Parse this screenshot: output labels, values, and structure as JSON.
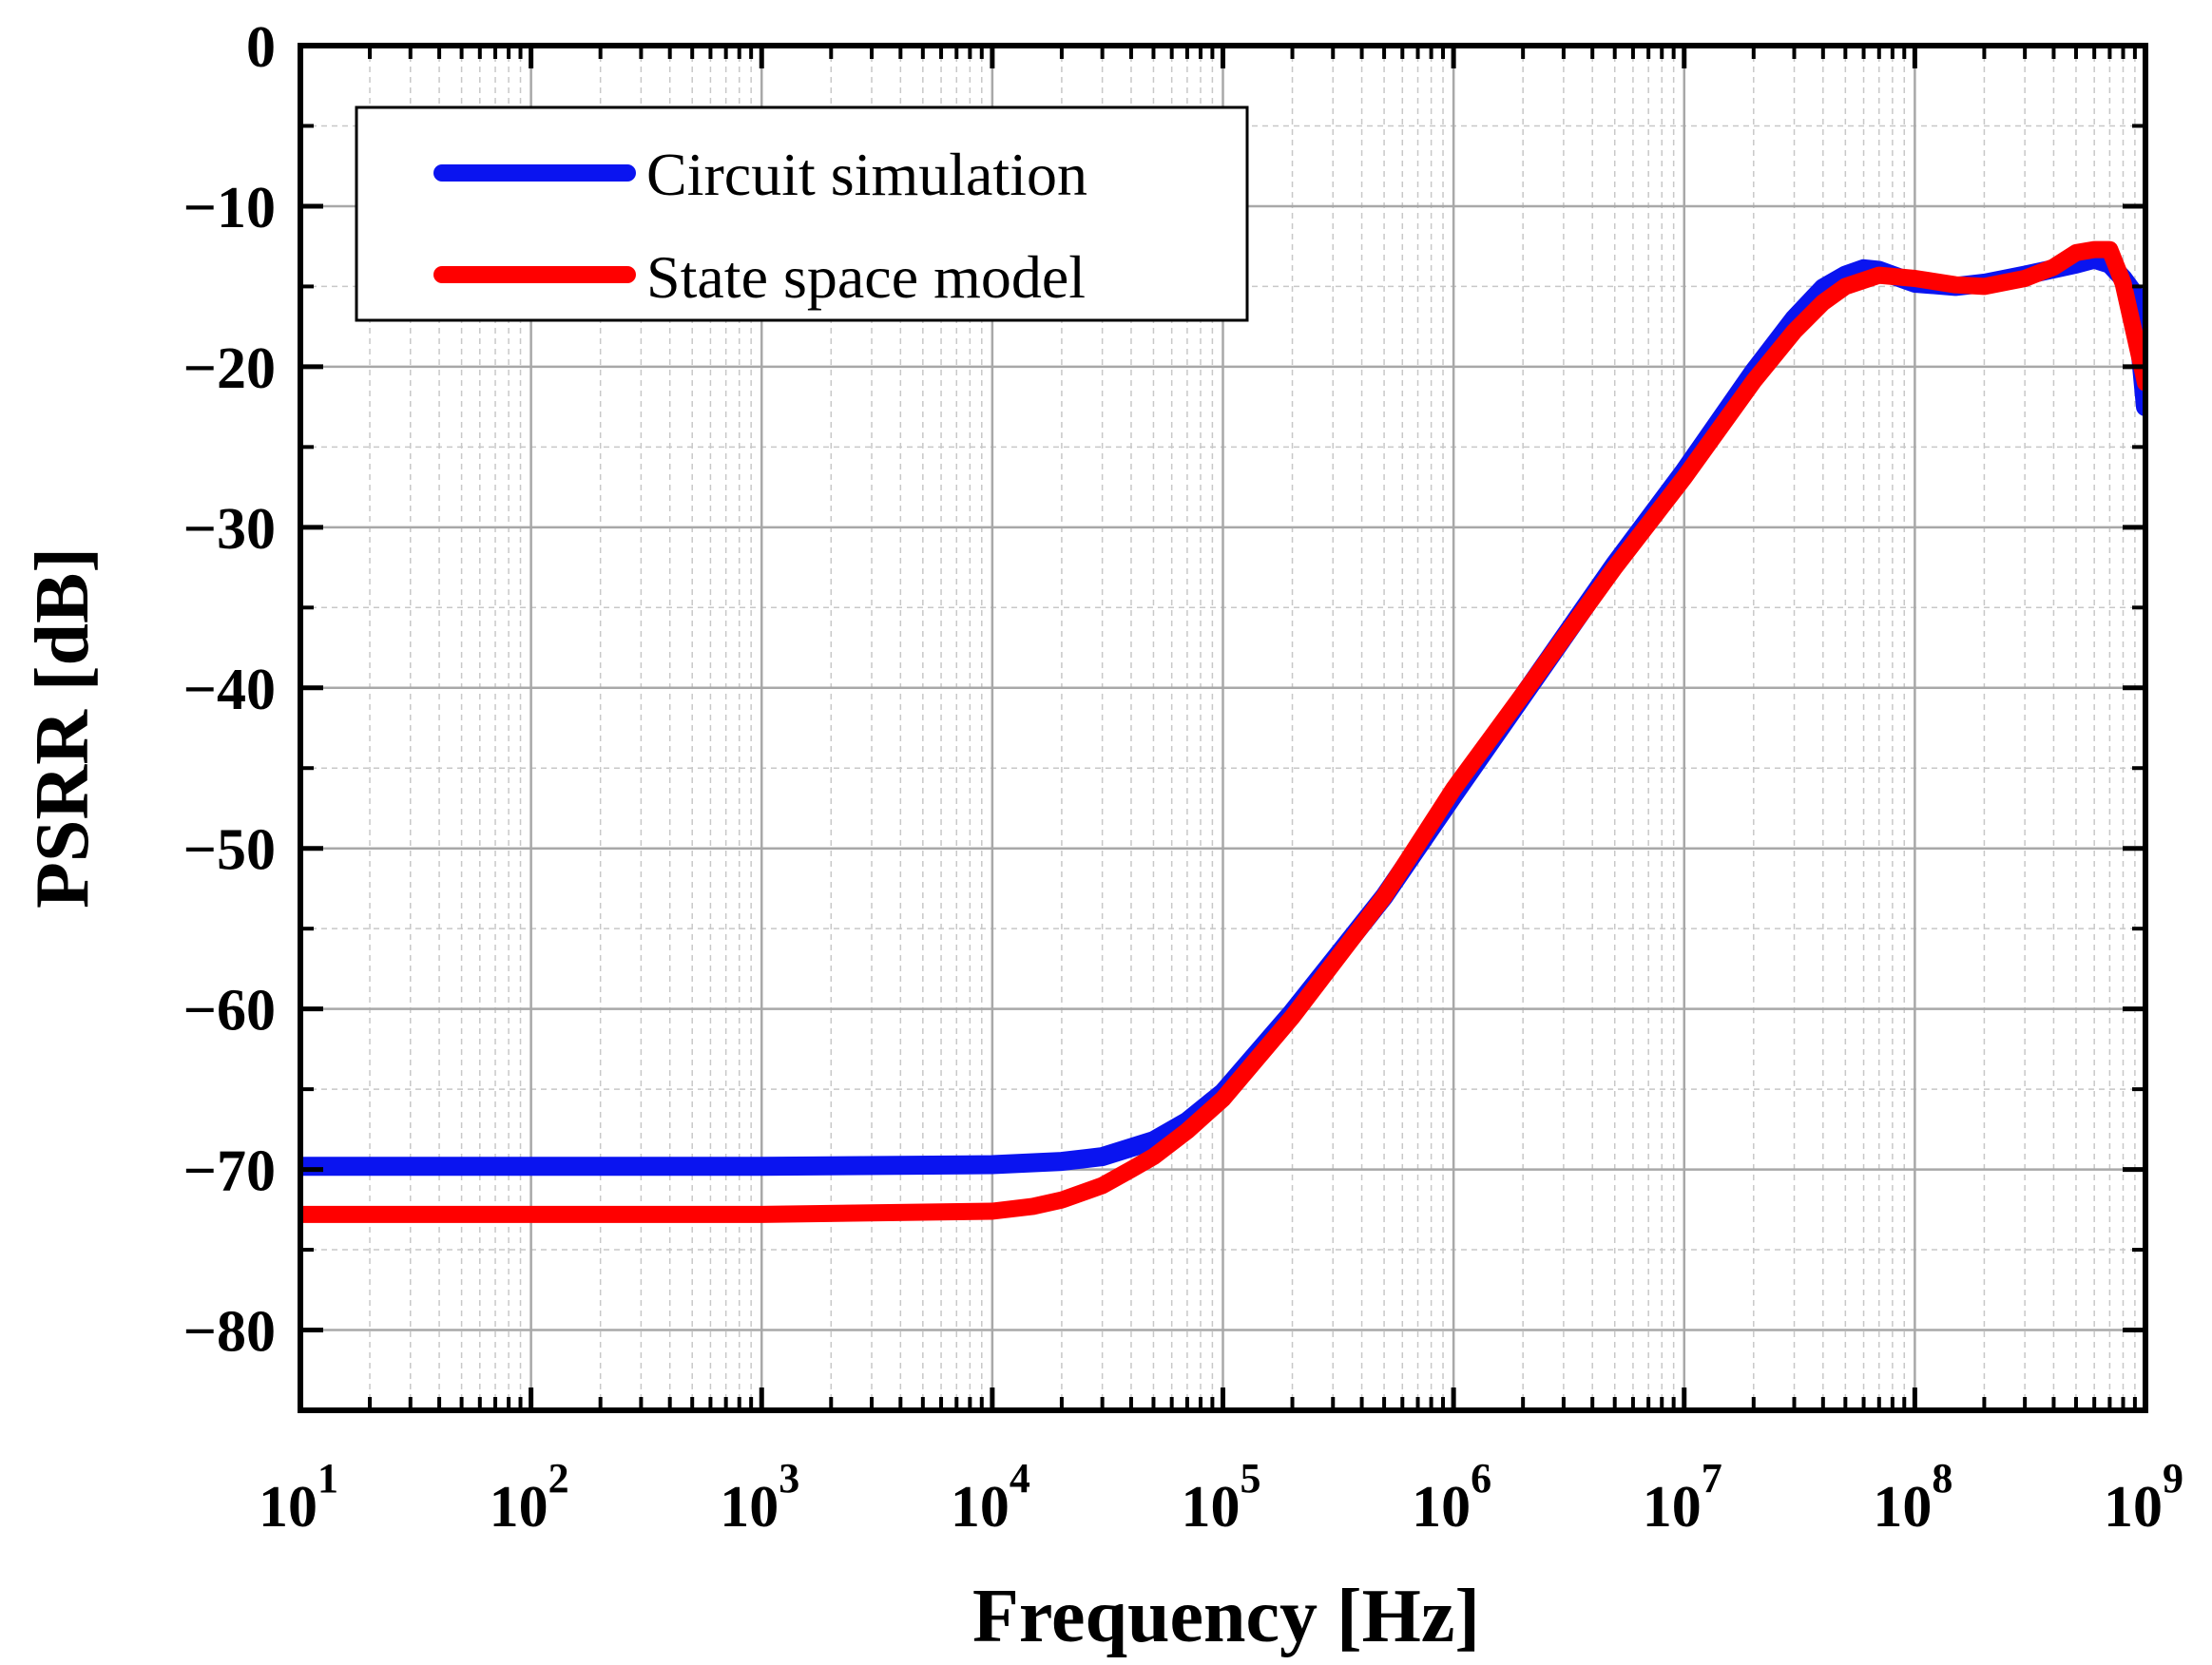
{
  "chart_data": {
    "type": "line",
    "title": "",
    "xlabel": "Frequency [Hz]",
    "ylabel": "PSRR [dB]",
    "xscale": "log",
    "xlim": [
      10,
      1000000000
    ],
    "ylim": [
      -85,
      0
    ],
    "grid": true,
    "legend_position": "top-left",
    "x_ticks": [
      {
        "base": "10",
        "exp": "1",
        "value": 10
      },
      {
        "base": "10",
        "exp": "2",
        "value": 100
      },
      {
        "base": "10",
        "exp": "3",
        "value": 1000
      },
      {
        "base": "10",
        "exp": "4",
        "value": 10000
      },
      {
        "base": "10",
        "exp": "5",
        "value": 100000
      },
      {
        "base": "10",
        "exp": "6",
        "value": 1000000
      },
      {
        "base": "10",
        "exp": "7",
        "value": 10000000
      },
      {
        "base": "10",
        "exp": "8",
        "value": 100000000
      },
      {
        "base": "10",
        "exp": "9",
        "value": 1000000000
      }
    ],
    "y_ticks": [
      {
        "label": "0",
        "value": 0
      },
      {
        "label": "−10",
        "value": -10
      },
      {
        "label": "−20",
        "value": -20
      },
      {
        "label": "−30",
        "value": -30
      },
      {
        "label": "−40",
        "value": -40
      },
      {
        "label": "−50",
        "value": -50
      },
      {
        "label": "−60",
        "value": -60
      },
      {
        "label": "−70",
        "value": -70
      },
      {
        "label": "−80",
        "value": -80
      }
    ],
    "series": [
      {
        "name": "Circuit simulation",
        "color": "#0a14f0",
        "x": [
          10,
          100,
          1000,
          10000,
          20000,
          30000,
          50000,
          70000,
          100000,
          200000,
          500000,
          1000000,
          2000000,
          5000000,
          10000000,
          20000000,
          30000000,
          40000000,
          50000000,
          60000000,
          70000000,
          80000000,
          100000000,
          150000000,
          200000000,
          300000000,
          500000000,
          600000000,
          700000000,
          800000000,
          900000000,
          1000000000
        ],
        "y": [
          -69.8,
          -69.8,
          -69.8,
          -69.7,
          -69.5,
          -69.2,
          -68.2,
          -67.0,
          -65.2,
          -60.2,
          -53.0,
          -46.7,
          -40.5,
          -32.3,
          -26.5,
          -20.3,
          -17.0,
          -15.1,
          -14.3,
          -13.9,
          -14.0,
          -14.3,
          -14.8,
          -15.0,
          -14.8,
          -14.3,
          -13.6,
          -13.3,
          -13.6,
          -14.5,
          -15.5,
          -22.5
        ]
      },
      {
        "name": "State space model",
        "color": "#ff0000",
        "x": [
          10,
          100,
          1000,
          10000,
          15000,
          20000,
          30000,
          40000,
          50000,
          70000,
          100000,
          200000,
          500000,
          1000000,
          2000000,
          5000000,
          10000000,
          20000000,
          30000000,
          40000000,
          50000000,
          70000000,
          100000000,
          150000000,
          200000000,
          300000000,
          400000000,
          500000000,
          600000000,
          700000000,
          800000000,
          1000000000
        ],
        "y": [
          -72.8,
          -72.8,
          -72.8,
          -72.6,
          -72.3,
          -71.9,
          -71.0,
          -70.0,
          -69.2,
          -67.6,
          -65.6,
          -60.5,
          -53.0,
          -46.3,
          -40.4,
          -32.5,
          -26.9,
          -20.9,
          -17.8,
          -16.0,
          -15.0,
          -14.3,
          -14.5,
          -14.9,
          -15.0,
          -14.5,
          -13.8,
          -12.9,
          -12.7,
          -12.7,
          -14.8,
          -21.0
        ]
      }
    ]
  }
}
